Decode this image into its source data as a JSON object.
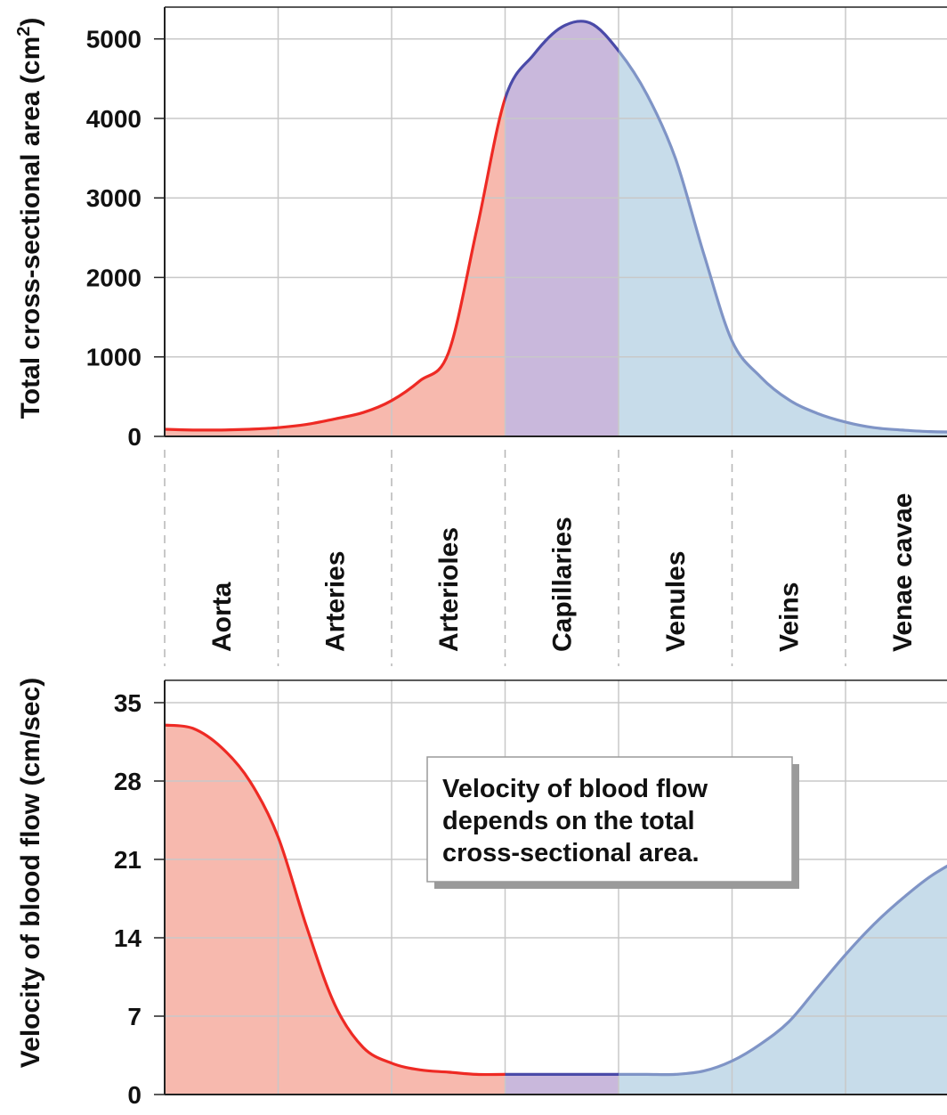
{
  "colors": {
    "artery_fill": "#f7b9ae",
    "artery_line": "#ee2a24",
    "capillary_fill": "#c9b8dc",
    "capillary_line": "#4a4aa8",
    "vein_fill": "#c7dcea",
    "vein_line": "#7f94c6",
    "grid": "#c8c8c8",
    "axis": "#222222"
  },
  "chart_data": [
    {
      "type": "area",
      "title": "",
      "ylabel": "Total cross-sectional area (cm²)",
      "ylabel_main": "Total cross-sectional area (cm",
      "ylabel_sup": "2",
      "ylabel_tail": ")",
      "xlabel": "",
      "ylim": [
        0,
        5400
      ],
      "yticks": [
        "0",
        "1000",
        "2000",
        "3000",
        "4000",
        "5000"
      ],
      "ytick_values": [
        0,
        1000,
        2000,
        3000,
        4000,
        5000
      ],
      "grid": true,
      "x": [
        0,
        0.25,
        0.5,
        0.75,
        1.0,
        1.25,
        1.5,
        1.75,
        2.0,
        2.25,
        2.5,
        2.75,
        3.0,
        3.25,
        3.5,
        3.75,
        4.0,
        4.25,
        4.5,
        4.75,
        5.0,
        5.25,
        5.5,
        5.75,
        6.0,
        6.25,
        6.5,
        6.75,
        7.0
      ],
      "series": [
        {
          "segment": "arterial",
          "values": [
            90,
            80,
            80,
            90,
            110,
            150,
            220,
            300,
            450,
            700,
            1050,
            2600,
            4250,
            4800,
            5150,
            5200,
            4850,
            4300,
            3500,
            2300,
            1200,
            750,
            460,
            290,
            180,
            110,
            80,
            60,
            55
          ]
        }
      ]
    },
    {
      "type": "area",
      "title": "",
      "ylabel": "Velocity of blood flow (cm/sec)",
      "xlabel": "",
      "ylim": [
        0,
        37
      ],
      "yticks": [
        "0",
        "7",
        "14",
        "21",
        "28",
        "35"
      ],
      "ytick_values": [
        0,
        7,
        14,
        21,
        28,
        35
      ],
      "grid": true,
      "x": [
        0,
        0.25,
        0.5,
        0.75,
        1.0,
        1.25,
        1.5,
        1.75,
        2.0,
        2.25,
        2.5,
        2.75,
        3.0,
        3.25,
        3.5,
        3.75,
        4.0,
        4.25,
        4.5,
        4.75,
        5.0,
        5.25,
        5.5,
        5.75,
        6.0,
        6.25,
        6.5,
        6.75,
        7.0
      ],
      "series": [
        {
          "segment": "arterial",
          "values": [
            33,
            32.7,
            31,
            28,
            23,
            15,
            8,
            4.2,
            2.8,
            2.2,
            2.0,
            1.8,
            1.8,
            1.8,
            1.8,
            1.8,
            1.8,
            1.8,
            1.8,
            2.1,
            3.0,
            4.5,
            6.5,
            9.5,
            12.5,
            15.2,
            17.5,
            19.5,
            21
          ]
        }
      ],
      "annotation": [
        "Velocity of blood flow",
        "depends on the total",
        "cross-sectional area."
      ]
    }
  ],
  "segments": [
    "Aorta",
    "Arteries",
    "Arterioles",
    "Capillaries",
    "Venules",
    "Veins",
    "Venae cavae"
  ]
}
